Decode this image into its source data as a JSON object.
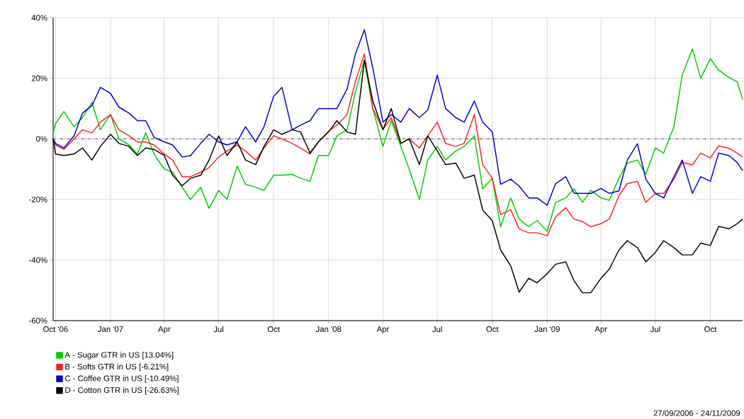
{
  "chart_data": {
    "type": "line",
    "x": [
      "2006-09-27",
      "2006-10-01",
      "2006-10-15",
      "2006-11-01",
      "2006-11-15",
      "2006-12-01",
      "2006-12-15",
      "2007-01-01",
      "2007-01-15",
      "2007-02-01",
      "2007-02-15",
      "2007-03-01",
      "2007-03-15",
      "2007-04-01",
      "2007-04-15",
      "2007-05-01",
      "2007-05-15",
      "2007-06-01",
      "2007-06-15",
      "2007-07-01",
      "2007-07-15",
      "2007-08-01",
      "2007-08-15",
      "2007-09-01",
      "2007-09-15",
      "2007-10-01",
      "2007-10-15",
      "2007-11-01",
      "2007-11-15",
      "2007-12-01",
      "2007-12-15",
      "2008-01-01",
      "2008-01-15",
      "2008-02-01",
      "2008-02-15",
      "2008-03-01",
      "2008-03-15",
      "2008-04-01",
      "2008-04-15",
      "2008-05-01",
      "2008-05-15",
      "2008-06-01",
      "2008-06-15",
      "2008-07-01",
      "2008-07-15",
      "2008-08-01",
      "2008-08-15",
      "2008-09-01",
      "2008-09-15",
      "2008-10-01",
      "2008-10-15",
      "2008-11-01",
      "2008-11-15",
      "2008-12-01",
      "2008-12-15",
      "2009-01-01",
      "2009-01-15",
      "2009-02-01",
      "2009-02-15",
      "2009-03-01",
      "2009-03-15",
      "2009-04-01",
      "2009-04-15",
      "2009-05-01",
      "2009-05-15",
      "2009-06-01",
      "2009-06-15",
      "2009-07-01",
      "2009-07-15",
      "2009-08-01",
      "2009-08-15",
      "2009-09-01",
      "2009-09-15",
      "2009-10-01",
      "2009-10-15",
      "2009-11-01",
      "2009-11-15",
      "2009-11-24"
    ],
    "series": [
      {
        "name": "A - Sugar GTR in US [13.04%]",
        "color": "#00cc00",
        "values": [
          2,
          5,
          9,
          4,
          7,
          12,
          3,
          8,
          0,
          -2,
          -5,
          2,
          -5,
          -10,
          -11,
          -16,
          -20,
          -16,
          -23,
          -17,
          -20,
          -9,
          -15,
          -16,
          -17,
          -12,
          -12,
          -11.7,
          -13,
          -14,
          -5.5,
          -5.5,
          1,
          3,
          15.5,
          26,
          10,
          -2.5,
          6,
          -2.5,
          -10,
          -20,
          -7,
          -2.5,
          -7,
          -4,
          -2.5,
          1,
          -16.5,
          -13,
          -29,
          -19.5,
          -26.5,
          -29,
          -27,
          -30.5,
          -21,
          -19.5,
          -16.5,
          -21,
          -17,
          -19.5,
          -20.3,
          -13,
          -8,
          -7,
          -11.7,
          -3,
          -4.7,
          4,
          21,
          29.7,
          20,
          26.5,
          22.7,
          20.3,
          18.8,
          13
        ]
      },
      {
        "name": "B - Softs GTR in US [-6.21%]",
        "color": "#ff2020",
        "values": [
          0,
          -2,
          -3.5,
          0,
          3,
          2,
          5.5,
          8,
          3,
          1,
          -1,
          -1,
          -2,
          -5,
          -7,
          -12.5,
          -12.5,
          -11,
          -9.5,
          -6,
          -4,
          -2,
          -4,
          -7,
          -3,
          1,
          0,
          -1.5,
          -3,
          -5,
          -1,
          2.5,
          4.5,
          8,
          19,
          28,
          10,
          3,
          7,
          -1.5,
          0,
          -3,
          1,
          5.5,
          -1.5,
          -2.5,
          -1.5,
          8,
          -8.5,
          -13,
          -25,
          -23.4,
          -29.7,
          -31,
          -31,
          -32,
          -25.8,
          -22.7,
          -26.5,
          -27.3,
          -29,
          -28,
          -26.5,
          -18.8,
          -14.8,
          -14,
          -21,
          -18,
          -18,
          -13.3,
          -7.8,
          -8.6,
          -4.7,
          -6.3,
          -2.3,
          -3.1,
          -4.7,
          -6
        ]
      },
      {
        "name": "C - Coffee GTR in US [-10.49%]",
        "color": "#0000cc",
        "values": [
          0,
          -1.5,
          -3,
          1,
          8.5,
          11,
          17,
          15,
          10.5,
          8.5,
          6,
          6,
          0.5,
          -1,
          -2,
          -6,
          -5.5,
          -1.5,
          1.5,
          -1,
          -2,
          -1,
          4,
          -1,
          4,
          14,
          17,
          3,
          4.5,
          6,
          10,
          10,
          10,
          16.5,
          28,
          36,
          23.5,
          5.5,
          8,
          5.5,
          10,
          7,
          9.5,
          21,
          10,
          7,
          5.5,
          12.5,
          5.5,
          2.3,
          -15,
          -13.3,
          -15.6,
          -19.5,
          -19.5,
          -21.9,
          -14.8,
          -12.5,
          -18,
          -18,
          -18,
          -16.4,
          -18,
          -17.2,
          -7,
          -1.6,
          -13.3,
          -18,
          -19.5,
          -12.5,
          -7,
          -18,
          -12.5,
          -14,
          -4.7,
          -5.5,
          -7.8,
          -10.5
        ]
      },
      {
        "name": "D - Cotton GTR in US [-26.63%]",
        "color": "#000000",
        "values": [
          0,
          -5,
          -5.5,
          -5,
          -3,
          -7,
          -2.5,
          1.5,
          -1.5,
          -2.5,
          -5.5,
          -3,
          -3.5,
          -5.5,
          -12,
          -15.5,
          -13,
          -12,
          -7,
          1,
          -5.5,
          -1,
          -7,
          -8.5,
          -2.5,
          3,
          1.5,
          3,
          2.3,
          -4.7,
          -1,
          2.3,
          6,
          2.3,
          1.5,
          26,
          12.5,
          3,
          10,
          -1.5,
          0,
          -8.5,
          1,
          -4,
          -8.5,
          -8,
          -13,
          -12,
          -23.5,
          -27,
          -36.7,
          -42,
          -50.6,
          -46,
          -47.5,
          -44.5,
          -41.4,
          -40.6,
          -46.9,
          -50.8,
          -50.8,
          -46,
          -43,
          -36.7,
          -33.6,
          -35.9,
          -40.6,
          -37.5,
          -33.6,
          -35.9,
          -38.3,
          -38.3,
          -34.4,
          -35.2,
          -28.9,
          -29.7,
          -28,
          -26.5
        ]
      }
    ],
    "xlim": [
      "2006-09-27",
      "2009-11-24"
    ],
    "xticks": [
      {
        "value": "2006-10-01",
        "label": "Oct '06"
      },
      {
        "value": "2007-01-01",
        "label": "Jan '07"
      },
      {
        "value": "2007-04-01",
        "label": "Apr"
      },
      {
        "value": "2007-07-01",
        "label": "Jul"
      },
      {
        "value": "2007-10-01",
        "label": "Oct"
      },
      {
        "value": "2008-01-01",
        "label": "Jan '08"
      },
      {
        "value": "2008-04-01",
        "label": "Apr"
      },
      {
        "value": "2008-07-01",
        "label": "Jul"
      },
      {
        "value": "2008-10-01",
        "label": "Oct"
      },
      {
        "value": "2009-01-01",
        "label": "Jan '09"
      },
      {
        "value": "2009-04-01",
        "label": "Apr"
      },
      {
        "value": "2009-07-01",
        "label": "Jul"
      },
      {
        "value": "2009-10-01",
        "label": "Oct"
      }
    ],
    "ylim": [
      -60,
      40
    ],
    "yticks": [
      {
        "value": -60,
        "label": "-60%"
      },
      {
        "value": -40,
        "label": "-40%"
      },
      {
        "value": -20,
        "label": "-20%"
      },
      {
        "value": 0,
        "label": "0%"
      },
      {
        "value": 20,
        "label": "20%"
      },
      {
        "value": 40,
        "label": "40%"
      }
    ],
    "ref_lines": [
      {
        "axis": "y",
        "value": 0,
        "color": "#000000",
        "line_style": "dotted"
      }
    ],
    "grid": true,
    "legend": "bottom",
    "annotations": [
      "27/09/2006 - 24/11/2009"
    ]
  }
}
